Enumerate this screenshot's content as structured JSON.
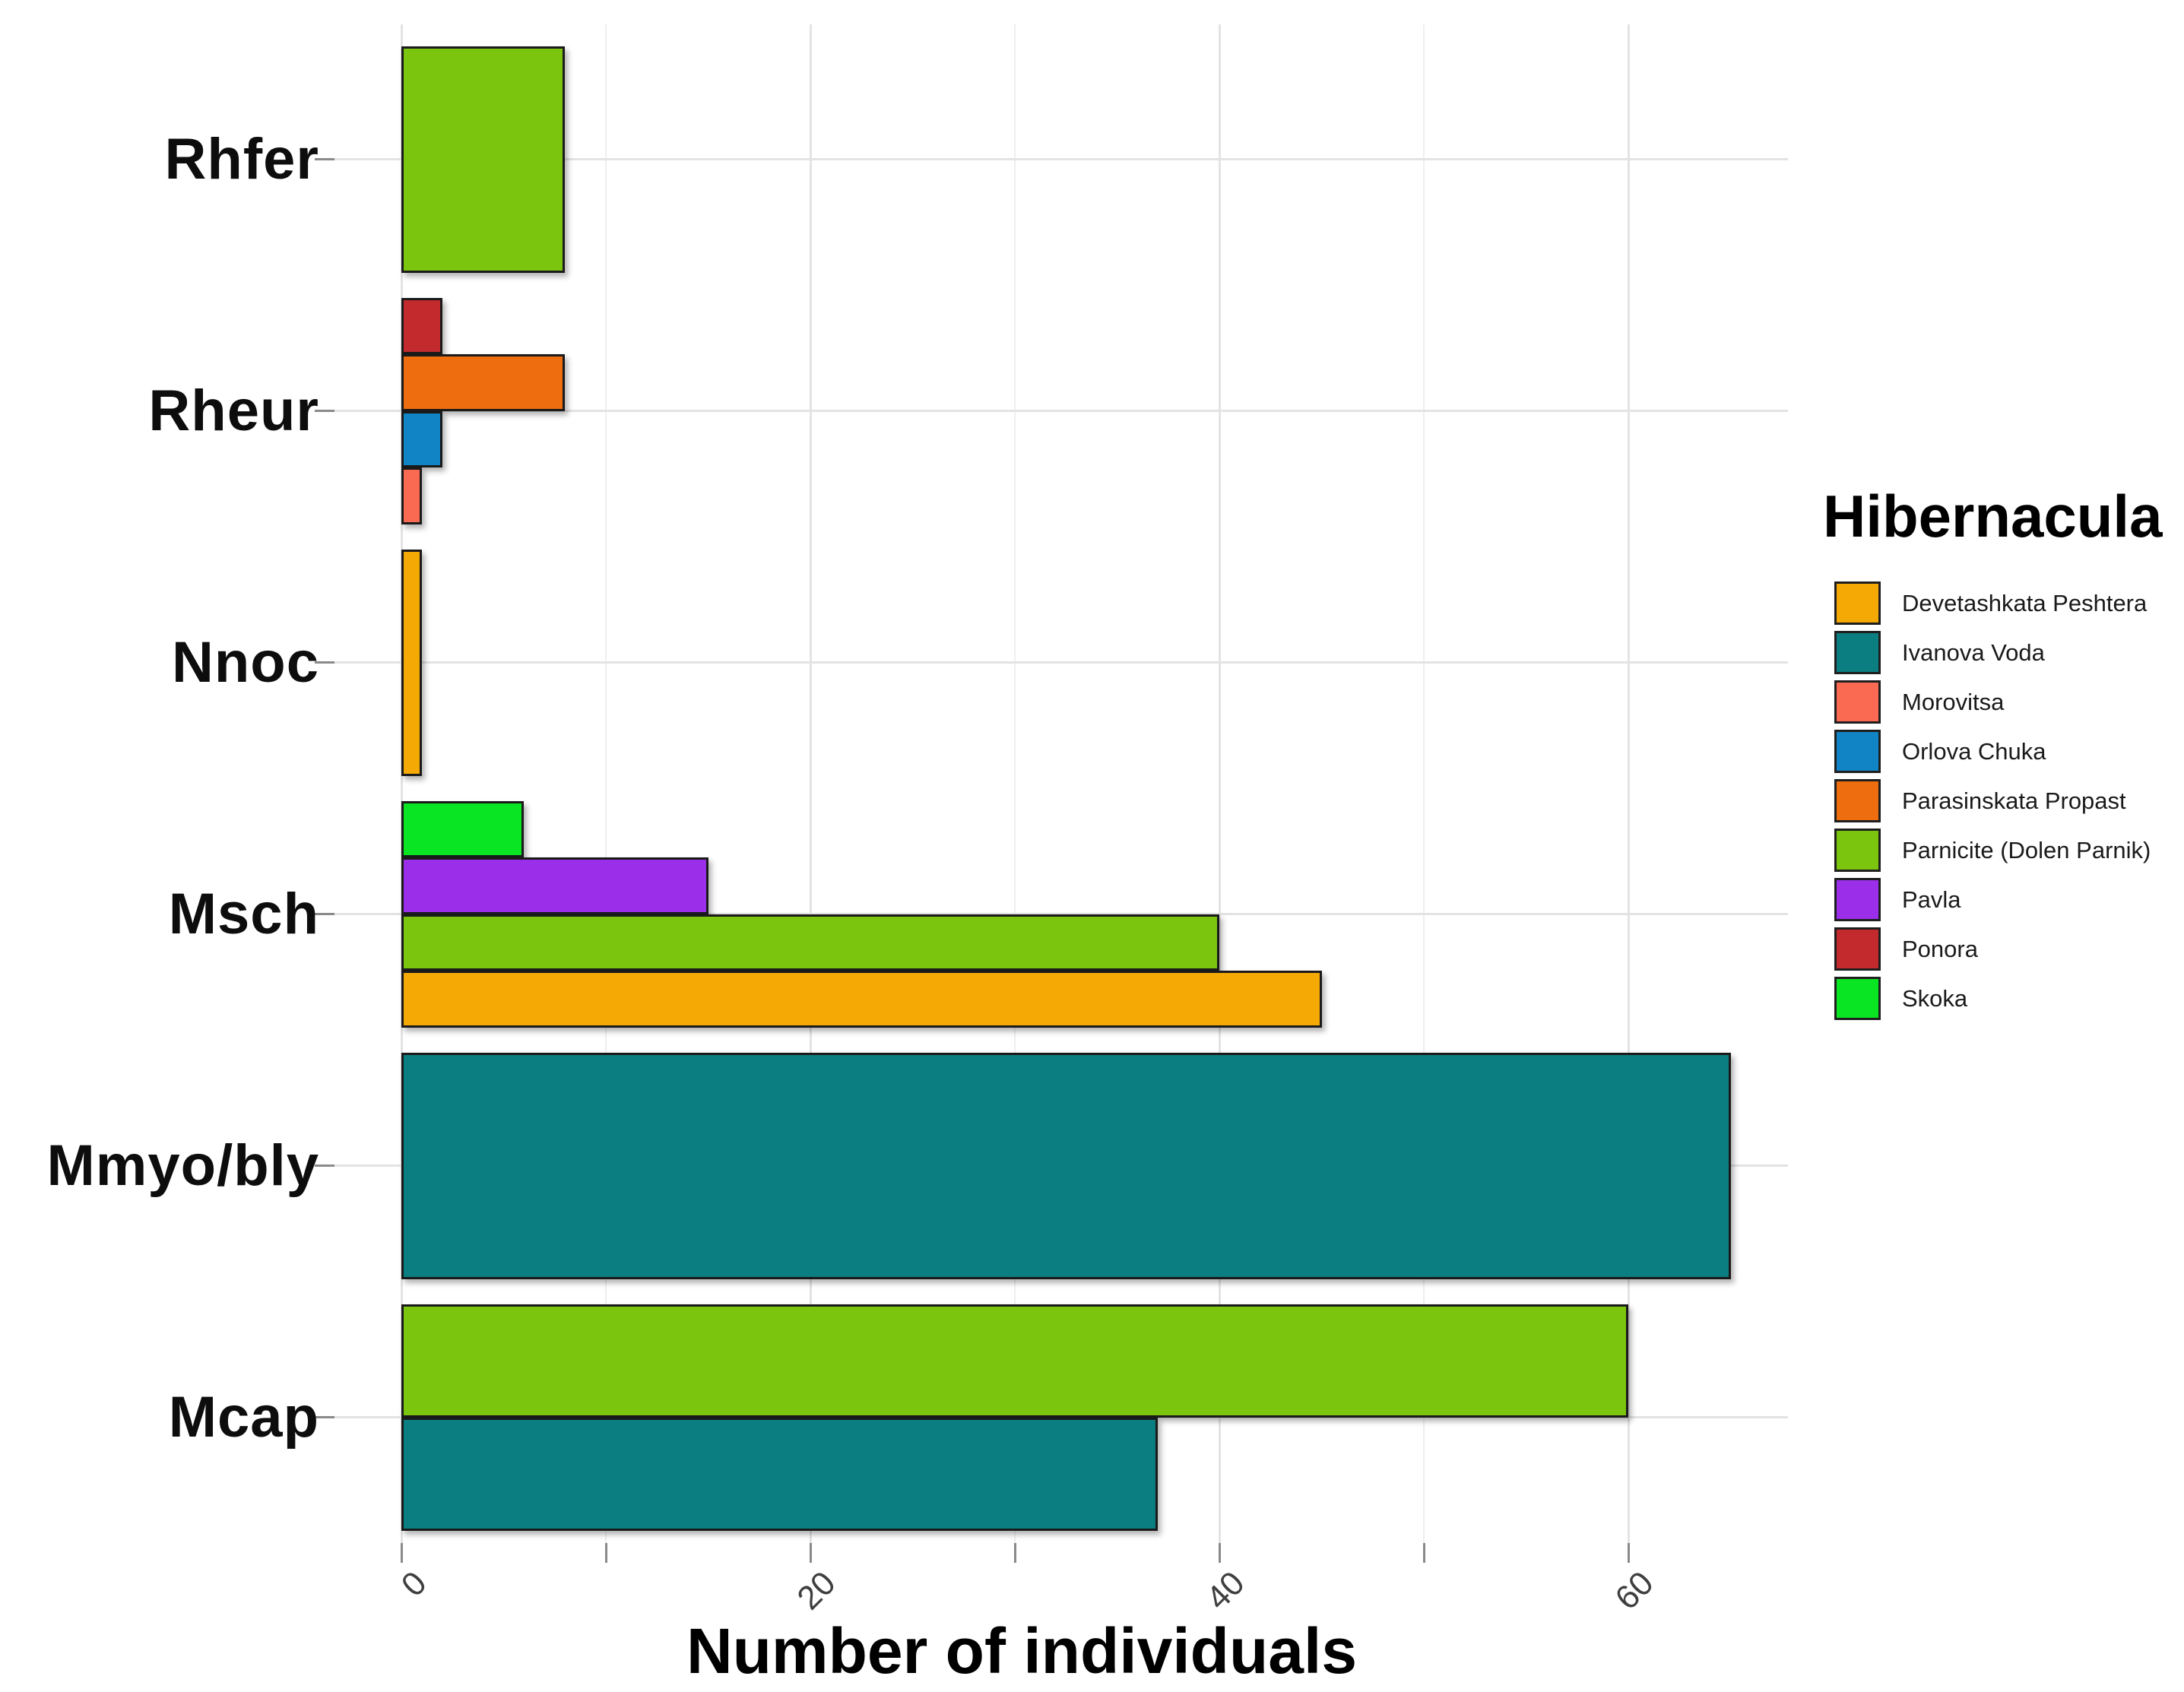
{
  "chart_data": {
    "type": "bar",
    "orientation": "horizontal",
    "title": "",
    "xlabel": "Number of individuals",
    "ylabel": "",
    "x_ticks": [
      0,
      20,
      40,
      60
    ],
    "x_minor_ticks": [
      10,
      30,
      50
    ],
    "xlim": [
      0,
      68
    ],
    "grid": true,
    "legend_position": "right",
    "legend_title": "Hibernacula",
    "hibernacula": [
      {
        "name": "Devetashkata Peshtera",
        "color": "#F5A904"
      },
      {
        "name": "Ivanova Voda",
        "color": "#0B7E81"
      },
      {
        "name": "Morovitsa",
        "color": "#FA6952"
      },
      {
        "name": "Orlova Chuka",
        "color": "#1184C5"
      },
      {
        "name": "Parasinskata Propast",
        "color": "#EE6D0E"
      },
      {
        "name": "Parnicite (Dolen Parnik)",
        "color": "#7CC50F"
      },
      {
        "name": "Pavla",
        "color": "#9B2FE9"
      },
      {
        "name": "Ponora",
        "color": "#C22A2E"
      },
      {
        "name": "Skoka",
        "color": "#0AE523"
      }
    ],
    "categories": [
      "Rhfer",
      "Rheur",
      "Nnoc",
      "Msch",
      "Mmyo/bly",
      "Mcap"
    ],
    "series_by_category": [
      {
        "category": "Rhfer",
        "bars": [
          {
            "hibernaculum": "Parnicite (Dolen Parnik)",
            "value": 8
          }
        ]
      },
      {
        "category": "Rheur",
        "bars": [
          {
            "hibernaculum": "Ponora",
            "value": 2
          },
          {
            "hibernaculum": "Parasinskata Propast",
            "value": 8
          },
          {
            "hibernaculum": "Orlova Chuka",
            "value": 2
          },
          {
            "hibernaculum": "Morovitsa",
            "value": 1
          }
        ]
      },
      {
        "category": "Nnoc",
        "bars": [
          {
            "hibernaculum": "Devetashkata Peshtera",
            "value": 1
          }
        ]
      },
      {
        "category": "Msch",
        "bars": [
          {
            "hibernaculum": "Skoka",
            "value": 6
          },
          {
            "hibernaculum": "Pavla",
            "value": 15
          },
          {
            "hibernaculum": "Parnicite (Dolen Parnik)",
            "value": 40
          },
          {
            "hibernaculum": "Devetashkata Peshtera",
            "value": 45
          }
        ]
      },
      {
        "category": "Mmyo/bly",
        "bars": [
          {
            "hibernaculum": "Ivanova Voda",
            "value": 65
          }
        ]
      },
      {
        "category": "Mcap",
        "bars": [
          {
            "hibernaculum": "Parnicite (Dolen Parnik)",
            "value": 60
          },
          {
            "hibernaculum": "Ivanova Voda",
            "value": 37
          }
        ]
      }
    ]
  }
}
